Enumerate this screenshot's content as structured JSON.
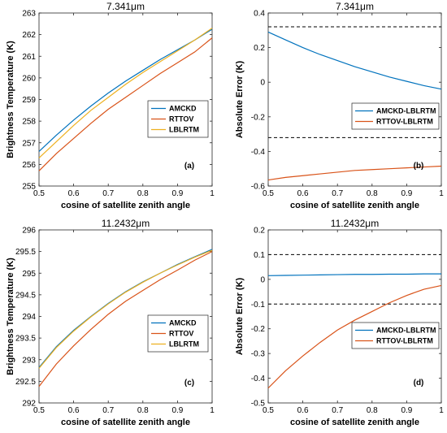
{
  "chart_data": [
    {
      "id": "a",
      "type": "line",
      "title": "7.341μm",
      "xlabel": "cosine of satellite zenith angle",
      "ylabel": "Brightness Temperature (K)",
      "panel_label": "(a)",
      "xlim": [
        0.5,
        1
      ],
      "ylim": [
        255,
        263
      ],
      "xticks": [
        0.5,
        0.6,
        0.7,
        0.8,
        0.9,
        1
      ],
      "yticks": [
        255,
        256,
        257,
        258,
        259,
        260,
        261,
        262,
        263
      ],
      "legend_position": "right",
      "x": [
        0.5,
        0.55,
        0.6,
        0.65,
        0.7,
        0.75,
        0.8,
        0.85,
        0.9,
        0.95,
        1.0
      ],
      "series": [
        {
          "name": "AMCKD",
          "color": "#0072BD",
          "values": [
            256.6,
            257.35,
            258.05,
            258.7,
            259.3,
            259.85,
            260.35,
            260.85,
            261.3,
            261.75,
            262.25
          ]
        },
        {
          "name": "RTTOV",
          "color": "#D95319",
          "values": [
            255.7,
            256.5,
            257.2,
            257.9,
            258.55,
            259.1,
            259.65,
            260.2,
            260.7,
            261.2,
            261.85
          ]
        },
        {
          "name": "LBLRTM",
          "color": "#EDB120",
          "values": [
            256.3,
            257.05,
            257.8,
            258.5,
            259.1,
            259.7,
            260.25,
            260.75,
            261.25,
            261.75,
            262.3
          ]
        }
      ],
      "hlines": []
    },
    {
      "id": "b",
      "type": "line",
      "title": "7.341μm",
      "xlabel": "cosine of satellite zenith angle",
      "ylabel": "Absolute Error (K)",
      "panel_label": "(b)",
      "xlim": [
        0.5,
        1
      ],
      "ylim": [
        -0.6,
        0.4
      ],
      "xticks": [
        0.5,
        0.6,
        0.7,
        0.8,
        0.9,
        1
      ],
      "yticks": [
        -0.6,
        -0.4,
        -0.2,
        0,
        0.2,
        0.4
      ],
      "legend_position": "center-right",
      "x": [
        0.5,
        0.55,
        0.6,
        0.65,
        0.7,
        0.75,
        0.8,
        0.85,
        0.9,
        0.95,
        1.0
      ],
      "series": [
        {
          "name": "AMCKD-LBLRTM",
          "color": "#0072BD",
          "values": [
            0.29,
            0.245,
            0.2,
            0.16,
            0.125,
            0.09,
            0.06,
            0.03,
            0.005,
            -0.02,
            -0.04
          ]
        },
        {
          "name": "RTTOV-LBLRTM",
          "color": "#D95319",
          "values": [
            -0.565,
            -0.55,
            -0.54,
            -0.53,
            -0.52,
            -0.51,
            -0.505,
            -0.5,
            -0.495,
            -0.49,
            -0.485
          ]
        }
      ],
      "hlines": [
        0.32,
        -0.32
      ]
    },
    {
      "id": "c",
      "type": "line",
      "title": "11.2432μm",
      "xlabel": "cosine of satellite zenith angle",
      "ylabel": "Brightness Temperature (K)",
      "panel_label": "(c)",
      "xlim": [
        0.5,
        1
      ],
      "ylim": [
        292,
        296
      ],
      "xticks": [
        0.5,
        0.6,
        0.7,
        0.8,
        0.9,
        1
      ],
      "yticks": [
        292,
        292.5,
        293,
        293.5,
        294,
        294.5,
        295,
        295.5,
        296
      ],
      "legend_position": "right",
      "x": [
        0.5,
        0.55,
        0.6,
        0.65,
        0.7,
        0.75,
        0.8,
        0.85,
        0.9,
        0.95,
        1.0
      ],
      "series": [
        {
          "name": "AMCKD",
          "color": "#0072BD",
          "values": [
            292.82,
            293.3,
            293.68,
            294.0,
            294.3,
            294.57,
            294.8,
            295.0,
            295.2,
            295.38,
            295.55
          ]
        },
        {
          "name": "RTTOV",
          "color": "#D95319",
          "values": [
            292.38,
            292.9,
            293.32,
            293.7,
            294.05,
            294.35,
            294.6,
            294.85,
            295.07,
            295.3,
            295.5
          ]
        },
        {
          "name": "LBLRTM",
          "color": "#EDB120",
          "values": [
            292.8,
            293.28,
            293.66,
            293.99,
            294.29,
            294.56,
            294.79,
            295.0,
            295.19,
            295.37,
            295.53
          ]
        }
      ],
      "hlines": []
    },
    {
      "id": "d",
      "type": "line",
      "title": "11.2432μm",
      "xlabel": "cosine of satellite zenith angle",
      "ylabel": "Absolute Error (K)",
      "panel_label": "(d)",
      "xlim": [
        0.5,
        1
      ],
      "ylim": [
        -0.5,
        0.2
      ],
      "xticks": [
        0.5,
        0.6,
        0.7,
        0.8,
        0.9,
        1
      ],
      "yticks": [
        -0.5,
        -0.4,
        -0.3,
        -0.2,
        -0.1,
        0,
        0.1,
        0.2
      ],
      "legend_position": "center-right",
      "x": [
        0.5,
        0.55,
        0.6,
        0.65,
        0.7,
        0.75,
        0.8,
        0.85,
        0.9,
        0.95,
        1.0
      ],
      "series": [
        {
          "name": "AMCKD-LBLRTM",
          "color": "#0072BD",
          "values": [
            0.015,
            0.016,
            0.017,
            0.018,
            0.019,
            0.02,
            0.02,
            0.021,
            0.021,
            0.022,
            0.022
          ]
        },
        {
          "name": "RTTOV-LBLRTM",
          "color": "#D95319",
          "values": [
            -0.44,
            -0.37,
            -0.31,
            -0.255,
            -0.205,
            -0.165,
            -0.13,
            -0.095,
            -0.065,
            -0.04,
            -0.025
          ]
        }
      ],
      "hlines": [
        0.1,
        -0.1
      ]
    }
  ]
}
